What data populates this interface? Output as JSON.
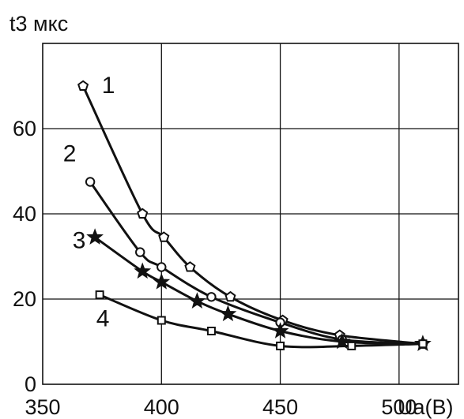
{
  "chart_data": {
    "type": "line",
    "title": "",
    "ylabel": "t3 мкс",
    "xlabel": "Ua(B)",
    "xlim": [
      350,
      525
    ],
    "ylim": [
      0,
      80
    ],
    "xticks": [
      "350",
      "400",
      "450",
      "500"
    ],
    "yticks": [
      "0",
      "20",
      "40",
      "60"
    ],
    "grid": true,
    "series": [
      {
        "name": "1",
        "marker": "pentagon",
        "points": [
          [
            367,
            70
          ],
          [
            392,
            40
          ],
          [
            401,
            34.5
          ],
          [
            412,
            27.5
          ],
          [
            429,
            20.5
          ],
          [
            451,
            15
          ],
          [
            475,
            11.5
          ],
          [
            510,
            9.5
          ]
        ]
      },
      {
        "name": "2",
        "marker": "circle",
        "points": [
          [
            370,
            47.5
          ],
          [
            391,
            31
          ],
          [
            400,
            27.5
          ],
          [
            421,
            20.5
          ],
          [
            450,
            14.5
          ],
          [
            476,
            10.5
          ],
          [
            510,
            9.5
          ]
        ]
      },
      {
        "name": "3",
        "marker": "star",
        "points": [
          [
            372,
            34.5
          ],
          [
            392,
            26.5
          ],
          [
            400,
            24
          ],
          [
            415,
            19.5
          ],
          [
            428,
            16.5
          ],
          [
            450,
            12.5
          ],
          [
            476,
            10
          ],
          [
            510,
            9.5
          ]
        ]
      },
      {
        "name": "4",
        "marker": "square",
        "points": [
          [
            374,
            21
          ],
          [
            400,
            15
          ],
          [
            421,
            12.5
          ],
          [
            450,
            9
          ],
          [
            480,
            9
          ],
          [
            510,
            9.5
          ]
        ]
      }
    ]
  }
}
